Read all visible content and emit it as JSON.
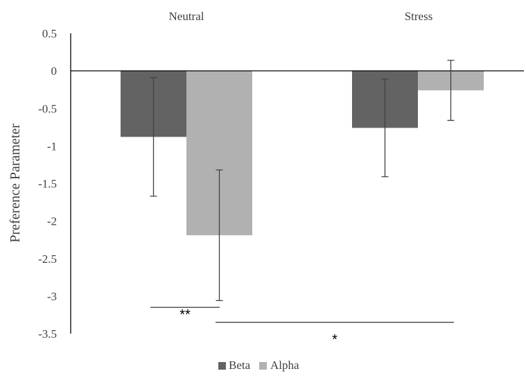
{
  "chart_data": {
    "type": "bar",
    "categories": [
      "Neutral",
      "Stress"
    ],
    "series": [
      {
        "name": "Beta",
        "values": [
          -0.88,
          -0.76
        ],
        "error": [
          0.79,
          0.65
        ],
        "color": "#636363"
      },
      {
        "name": "Alpha",
        "values": [
          -2.19,
          -0.26
        ],
        "error": [
          0.87,
          0.4
        ],
        "color": "#b1b1b1"
      }
    ],
    "ylabel": "Preference Parameter",
    "ylim": [
      -3.5,
      0.5
    ],
    "yticks": [
      "0.5",
      "0",
      "-0.5",
      "-1",
      "-1.5",
      "-2",
      "-2.5",
      "-3",
      "-3.5"
    ],
    "category_labels_position": "top",
    "grid": false,
    "legend": "bottom",
    "significance": [
      {
        "label": "**",
        "y": -3.15,
        "from": "Beta Neutral",
        "to": "Alpha Neutral"
      },
      {
        "label": "*",
        "y": -3.35,
        "from": "Alpha Neutral",
        "to": "Alpha Stress"
      }
    ]
  }
}
